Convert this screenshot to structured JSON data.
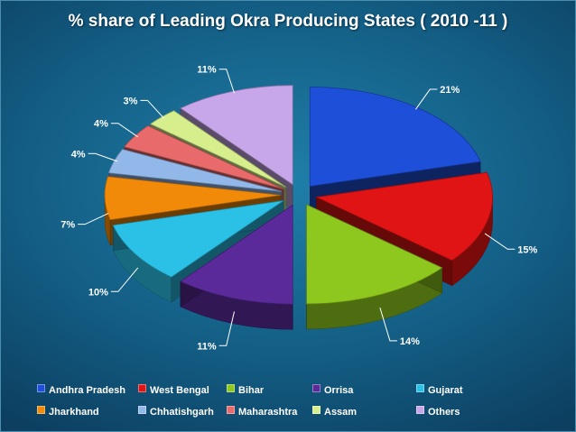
{
  "chart_data": {
    "type": "pie",
    "title": "% share of Leading Okra Producing States ( 2010 -11 )",
    "categories": [
      "Andhra Pradesh",
      "West Bengal",
      "Bihar",
      "Orrisa",
      "Gujarat",
      "Jharkhand",
      "Chhatishgarh",
      "Maharashtra",
      "Assam",
      "Others"
    ],
    "values": [
      21,
      15,
      14,
      11,
      10,
      7,
      4,
      4,
      3,
      11
    ],
    "value_labels": [
      "21%",
      "15%",
      "14%",
      "11%",
      "10%",
      "7%",
      "4%",
      "4%",
      "3%",
      "11%"
    ],
    "colors": [
      "#1e4fd8",
      "#e01414",
      "#8ec71e",
      "#5a2a9a",
      "#2bc0e6",
      "#f08a08",
      "#92b8ea",
      "#e86a6a",
      "#d6ee8c",
      "#c7a6ea"
    ],
    "exploded": true,
    "legend_position": "bottom"
  }
}
